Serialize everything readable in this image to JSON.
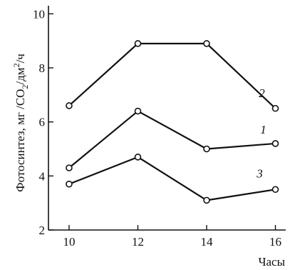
{
  "chart_data": {
    "type": "line",
    "x": [
      10,
      12,
      14,
      16
    ],
    "series": [
      {
        "name": "2",
        "values": [
          6.6,
          8.9,
          8.9,
          6.5
        ]
      },
      {
        "name": "1",
        "values": [
          4.3,
          6.4,
          5.0,
          5.2
        ]
      },
      {
        "name": "3",
        "values": [
          3.7,
          4.7,
          3.1,
          3.5
        ]
      }
    ],
    "xlabel": "Часы",
    "ylabel_parts": {
      "main": "Фотосинтез,  мг /СО",
      "co2_sub": "2",
      "after_sub": "/дм",
      "dm_sup": "2",
      "end": "/ч"
    },
    "xticks": [
      "10",
      "12",
      "14",
      "16"
    ],
    "yticks": [
      "2",
      "4",
      "6",
      "8",
      "10"
    ],
    "xlim": [
      9.4,
      16.3
    ],
    "ylim": [
      2,
      10
    ],
    "grid": false
  }
}
